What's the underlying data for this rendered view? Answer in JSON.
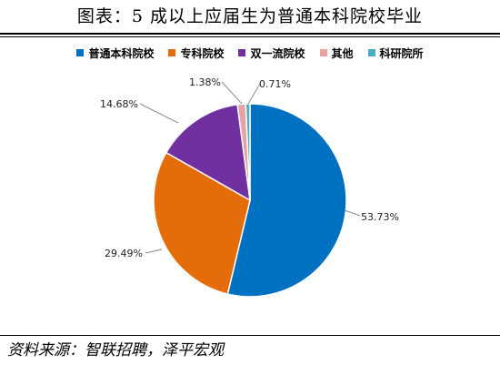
{
  "title": "图表：5 成以上应届生为普通本科院校毕业",
  "source": "资料来源：智联招聘，泽平宏观",
  "chart_data": {
    "type": "pie",
    "categories": [
      "普通本科院校",
      "专科院校",
      "双一流院校",
      "其他",
      "科研院所"
    ],
    "values": [
      53.73,
      29.49,
      14.68,
      1.38,
      0.71
    ],
    "labels": [
      "53.73%",
      "29.49%",
      "14.68%",
      "1.38%",
      "0.71%"
    ],
    "colors": [
      "#0070C0",
      "#E46C0A",
      "#7030A0",
      "#E6A3A3",
      "#4BACC6"
    ],
    "legend_position": "top"
  }
}
